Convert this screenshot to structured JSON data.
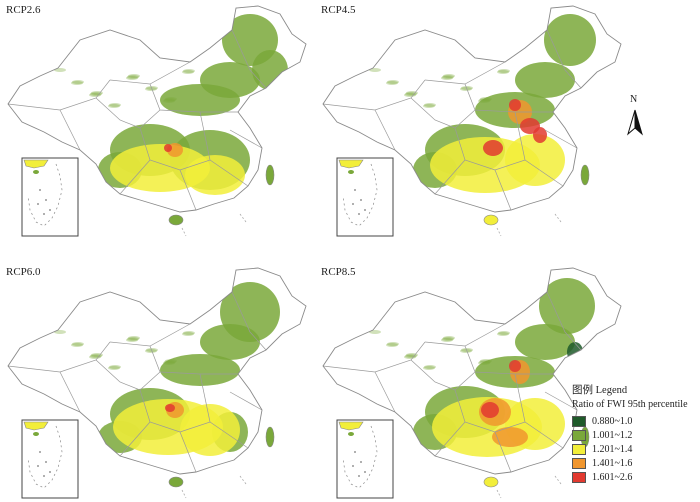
{
  "panels": [
    {
      "label": "RCP2.6",
      "profile": "rcp26"
    },
    {
      "label": "RCP4.5",
      "profile": "rcp45"
    },
    {
      "label": "RCP6.0",
      "profile": "rcp60"
    },
    {
      "label": "RCP8.5",
      "profile": "rcp85"
    }
  ],
  "north_arrow": {
    "letter": "N"
  },
  "legend": {
    "title": "图例 Legend",
    "subtitle": "Ratio of FWI 95th percentile",
    "items": [
      {
        "label": "0.880~1.0",
        "color": "#1f5a2a"
      },
      {
        "label": "1.001~1.2",
        "color": "#7aa83a"
      },
      {
        "label": "1.201~1.4",
        "color": "#f2ee3a"
      },
      {
        "label": "1.401~1.6",
        "color": "#f0962e"
      },
      {
        "label": "1.601~2.6",
        "color": "#e23a30"
      }
    ]
  }
}
